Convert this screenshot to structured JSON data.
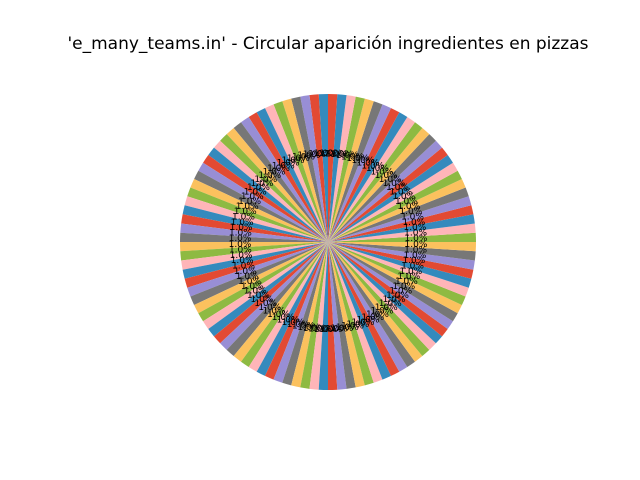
{
  "chart_data": {
    "type": "pie",
    "title": "'e_many_teams.in' - Circular aparición ingredientes en pizzas",
    "slice_count": 100,
    "values": [
      1,
      1,
      1,
      1,
      1,
      1,
      1,
      1,
      1,
      1,
      1,
      1,
      1,
      1,
      1,
      1,
      1,
      1,
      1,
      1,
      1,
      1,
      1,
      1,
      1,
      1,
      1,
      1,
      1,
      1,
      1,
      1,
      1,
      1,
      1,
      1,
      1,
      1,
      1,
      1,
      1,
      1,
      1,
      1,
      1,
      1,
      1,
      1,
      1,
      1,
      1,
      1,
      1,
      1,
      1,
      1,
      1,
      1,
      1,
      1,
      1,
      1,
      1,
      1,
      1,
      1,
      1,
      1,
      1,
      1,
      1,
      1,
      1,
      1,
      1,
      1,
      1,
      1,
      1,
      1,
      1,
      1,
      1,
      1,
      1,
      1,
      1,
      1,
      1,
      1,
      1,
      1,
      1,
      1,
      1,
      1,
      1,
      1,
      1,
      1
    ],
    "percent_label": "1.0%",
    "colors": [
      "#348abd",
      "#e24a33",
      "#988ed5",
      "#777777",
      "#fbc15e",
      "#8eba42",
      "#ffb5b8"
    ],
    "start_angle_deg": 90,
    "legend": "none"
  }
}
